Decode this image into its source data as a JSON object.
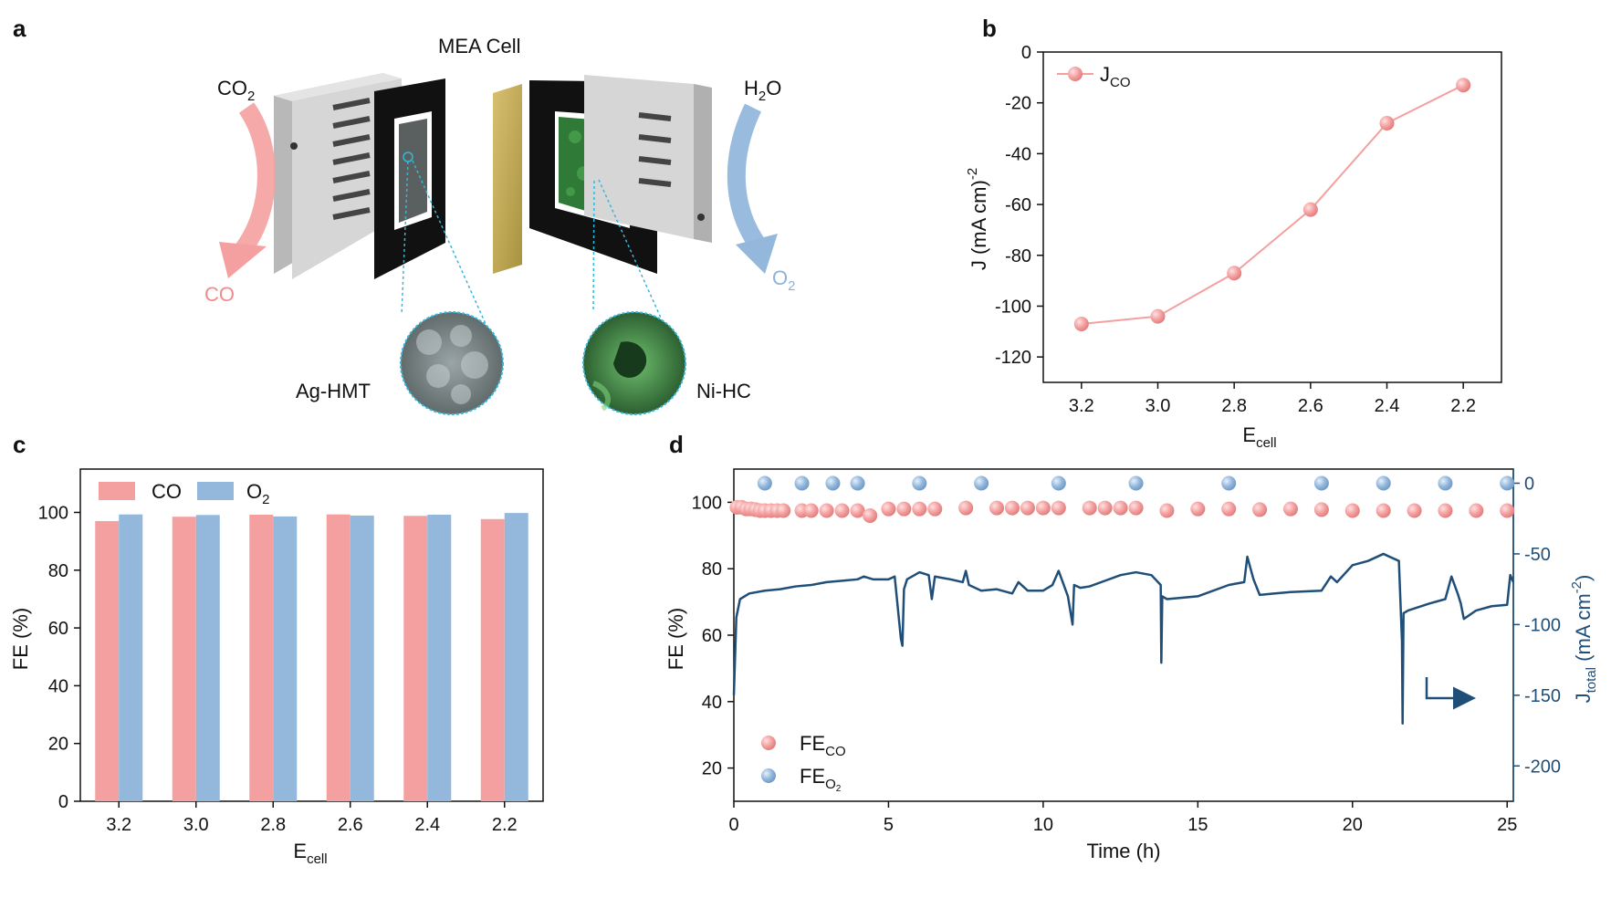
{
  "panels": {
    "a": {
      "letter": "a",
      "title": "MEA Cell",
      "left_in": "CO",
      "left_in_sub": "2",
      "left_out": "CO",
      "right_in": "H",
      "right_in_sub": "2",
      "right_in_tail": "O",
      "right_out": "O",
      "right_out_sub": "2",
      "cathode_label": "Ag-HMT",
      "anode_label": "Ni-HC"
    },
    "b": {
      "letter": "b"
    },
    "c": {
      "letter": "c"
    },
    "d": {
      "letter": "d"
    }
  },
  "chart_data": [
    {
      "panel": "b",
      "type": "line",
      "x": [
        3.2,
        3.0,
        2.8,
        2.6,
        2.4,
        2.2
      ],
      "series": [
        {
          "name": "J",
          "name_sub": "CO",
          "values": [
            -107,
            -104,
            -87,
            -62,
            -28,
            -13
          ],
          "color": "#f4a0a0"
        }
      ],
      "xlabel": "E",
      "xlabel_sub": "cell",
      "ylabel": "J (mA cm)",
      "ylabel_sup": "-2",
      "xlim": [
        3.3,
        2.1
      ],
      "ylim": [
        -130,
        0
      ],
      "xticks": [
        3.2,
        3.0,
        2.8,
        2.6,
        2.4,
        2.2
      ],
      "yticks": [
        0,
        -20,
        -40,
        -60,
        -80,
        -100,
        -120
      ],
      "legend_position": "top-left"
    },
    {
      "panel": "c",
      "type": "bar",
      "categories": [
        "3.2",
        "3.0",
        "2.8",
        "2.6",
        "2.4",
        "2.2"
      ],
      "series": [
        {
          "name": "CO",
          "values": [
            97,
            98.5,
            99.2,
            99.3,
            98.8,
            97.7
          ],
          "color": "#f4a0a0"
        },
        {
          "name": "O",
          "name_sub": "2",
          "values": [
            99.3,
            99.1,
            98.6,
            98.9,
            99.2,
            99.8
          ],
          "color": "#93b8dc"
        }
      ],
      "xlabel": "E",
      "xlabel_sub": "cell",
      "ylabel": "FE (%)",
      "ylim": [
        0,
        115
      ],
      "yticks": [
        0,
        20,
        40,
        60,
        80,
        100
      ],
      "legend_position": "top-left"
    },
    {
      "panel": "d",
      "type": "scatter",
      "xlabel": "Time (h)",
      "ylabel": "FE (%)",
      "y2label": "J",
      "y2label_sub": "total",
      "y2label_unit": "(mA cm",
      "y2label_sup": "-2",
      "y2label_close": ")",
      "xlim": [
        0,
        25.2
      ],
      "ylim": [
        10,
        110
      ],
      "y2lim": [
        -225,
        10
      ],
      "xticks": [
        0,
        5,
        10,
        15,
        20,
        25
      ],
      "yticks": [
        20,
        40,
        60,
        80,
        100
      ],
      "y2ticks": [
        0,
        -50,
        -100,
        -150,
        -200
      ],
      "fe_co": {
        "name": "FE",
        "name_sub": "CO",
        "color": "#f4a0a0",
        "x": [
          0.1,
          0.25,
          0.4,
          0.55,
          0.7,
          0.85,
          1.0,
          1.2,
          1.4,
          1.6,
          2.2,
          2.5,
          3.0,
          3.5,
          4.0,
          4.4,
          5.0,
          5.5,
          6.0,
          6.5,
          7.5,
          8.5,
          9.0,
          9.5,
          10.0,
          10.5,
          11.5,
          12.0,
          12.5,
          13.0,
          14.0,
          15.0,
          16.0,
          17.0,
          18.0,
          19.0,
          20.0,
          21.0,
          22.0,
          23.0,
          24.0,
          25.0
        ],
        "values": [
          98.5,
          98.5,
          98,
          98,
          97.8,
          97.5,
          97.5,
          97.5,
          97.5,
          97.5,
          97.5,
          97.5,
          97.5,
          97.5,
          97.5,
          96,
          98,
          98,
          98,
          98,
          98.3,
          98.3,
          98.3,
          98.3,
          98.3,
          98.3,
          98.3,
          98.3,
          98.3,
          98.3,
          97.5,
          98,
          98,
          97.8,
          98,
          97.8,
          97.5,
          97.5,
          97.5,
          97.5,
          97.5,
          97.5
        ]
      },
      "fe_o2": {
        "name": "FE",
        "name_sub": "O",
        "name_subsub": "2",
        "color": "#93b8dc",
        "x": [
          1.0,
          2.2,
          3.2,
          4.0,
          6.0,
          8.0,
          10.5,
          13.0,
          16.0,
          19.0,
          21.0,
          23.0,
          25.0
        ],
        "values": [
          0,
          0,
          0,
          0,
          0,
          0,
          0,
          0,
          0,
          0,
          0,
          0,
          0
        ]
      },
      "j_total": {
        "color": "#1f4e79",
        "t": [
          0,
          0.08,
          0.2,
          0.5,
          1.0,
          1.5,
          2.0,
          2.5,
          3.0,
          3.5,
          4.0,
          4.2,
          4.5,
          5.0,
          5.2,
          5.4,
          5.45,
          5.5,
          5.6,
          6.0,
          6.3,
          6.4,
          6.5,
          7.0,
          7.4,
          7.5,
          7.6,
          8.0,
          8.5,
          9.0,
          9.2,
          9.5,
          10.0,
          10.3,
          10.5,
          10.8,
          10.95,
          11.0,
          11.2,
          11.5,
          12.0,
          12.5,
          13.0,
          13.5,
          13.8,
          13.82,
          13.85,
          14.0,
          15.0,
          16.0,
          16.5,
          16.6,
          16.8,
          17.0,
          17.5,
          18.0,
          19.0,
          19.3,
          19.5,
          20.0,
          20.5,
          21.0,
          21.5,
          21.6,
          21.62,
          21.65,
          21.8,
          22.5,
          23.0,
          23.2,
          23.4,
          23.5,
          23.6,
          24.0,
          24.5,
          25.0,
          25.1,
          25.2
        ],
        "values": [
          -150,
          -95,
          -82,
          -78,
          -76,
          -75,
          -73,
          -72,
          -70,
          -69,
          -68,
          -66,
          -68,
          -68,
          -66,
          -110,
          -115,
          -75,
          -68,
          -63,
          -65,
          -82,
          -66,
          -68,
          -70,
          -62,
          -72,
          -76,
          -75,
          -78,
          -70,
          -76,
          -76,
          -72,
          -62,
          -80,
          -100,
          -72,
          -74,
          -73,
          -69,
          -65,
          -63,
          -65,
          -72,
          -127,
          -80,
          -82,
          -80,
          -72,
          -70,
          -52,
          -68,
          -79,
          -78,
          -77,
          -76,
          -66,
          -70,
          -58,
          -55,
          -50,
          -55,
          -112,
          -170,
          -92,
          -90,
          -85,
          -82,
          -66,
          -78,
          -85,
          -96,
          -90,
          -87,
          -86,
          -65,
          -70
        ]
      }
    }
  ]
}
